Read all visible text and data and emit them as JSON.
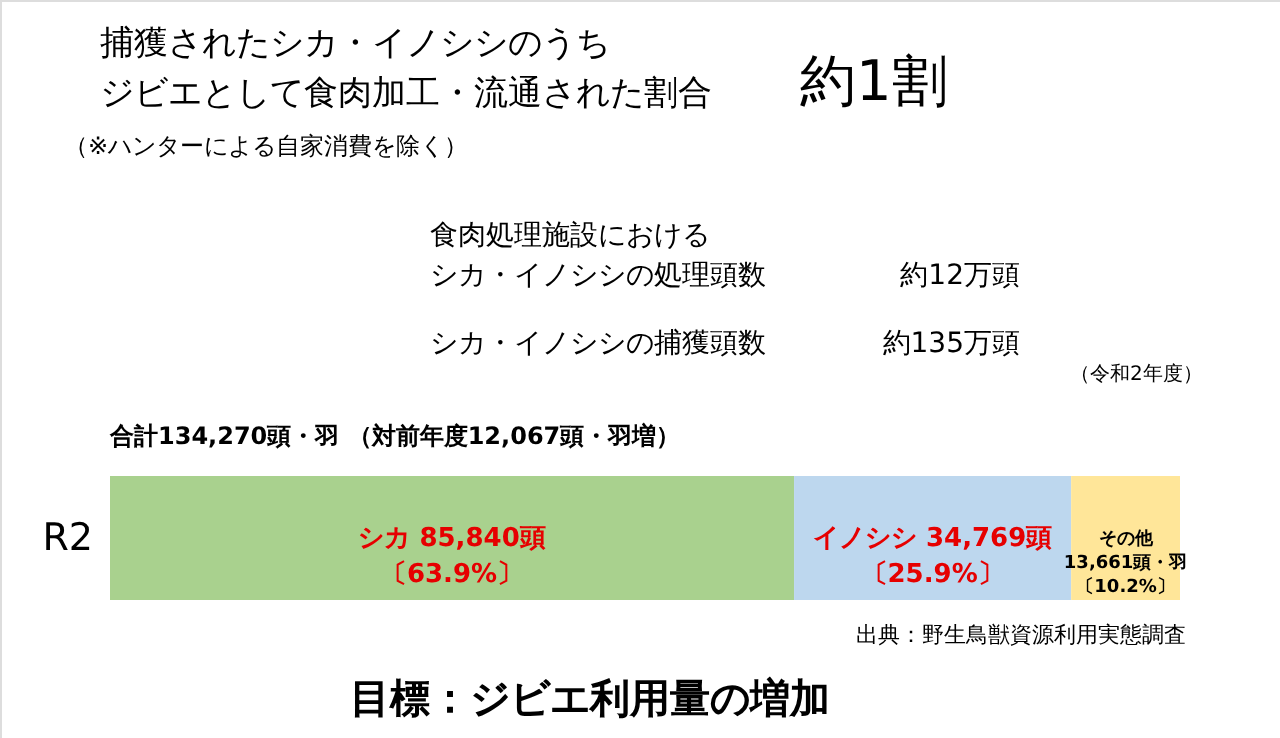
{
  "chart_data": {
    "type": "bar",
    "orientation": "horizontal",
    "stacked": true,
    "title": "捕獲されたシカ・イノシシのうち",
    "subtitle": "ジビエとして食肉加工・流通された割合",
    "categories": [
      "R2"
    ],
    "xlim": [
      0,
      134270
    ],
    "tick_labels": "y",
    "grid": false,
    "series": [
      {
        "color": "#a9d18e",
        "values": [
          85840
        ],
        "value_labels": [
          "シカ 85,840頭〔63.9%〕"
        ]
      },
      {
        "color": "#bdd7ee",
        "values": [
          34769
        ],
        "value_labels": [
          "イノシシ 34,769頭〔25.9%〕"
        ]
      },
      {
        "color": "#ffe699",
        "values": [
          13661
        ],
        "value_labels": [
          "その他13,661頭・羽〔10.2%〕"
        ]
      }
    ],
    "annotations": [
      "約1割",
      "（※ハンターによる自家消費を除く）",
      "食肉処理施設における",
      "シカ・イノシシの処理頭数",
      "約12万頭",
      "シカ・イノシシの捕獲頭数",
      "約135万頭",
      "（令和2年度）",
      "合計134,270頭・羽 （対前年度12,067頭・羽増）",
      "出典：野生鳥獣資源利用実態調査",
      "目標：ジビエ利用量の増加"
    ]
  }
}
